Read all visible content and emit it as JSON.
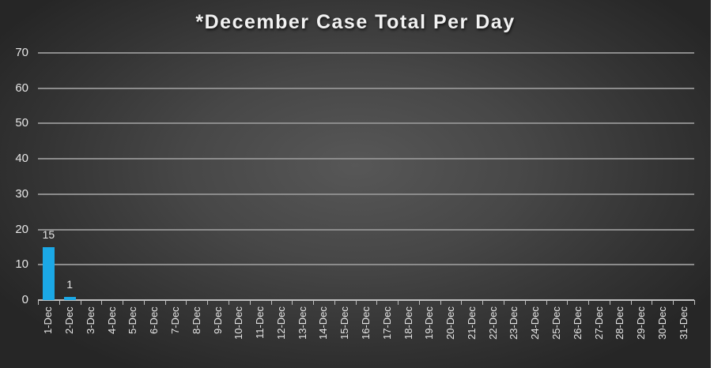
{
  "chart_data": {
    "type": "bar",
    "title": "*December Case Total Per Day",
    "xlabel": "",
    "ylabel": "",
    "ylim": [
      0,
      70
    ],
    "yticks": [
      0,
      10,
      20,
      30,
      40,
      50,
      60,
      70
    ],
    "grid": true,
    "legend": null,
    "bar_color": "#1ba8e6",
    "categories": [
      "1-Dec",
      "2-Dec",
      "3-Dec",
      "4-Dec",
      "5-Dec",
      "6-Dec",
      "7-Dec",
      "8-Dec",
      "9-Dec",
      "10-Dec",
      "11-Dec",
      "12-Dec",
      "13-Dec",
      "14-Dec",
      "15-Dec",
      "16-Dec",
      "17-Dec",
      "18-Dec",
      "19-Dec",
      "20-Dec",
      "21-Dec",
      "22-Dec",
      "23-Dec",
      "24-Dec",
      "25-Dec",
      "26-Dec",
      "27-Dec",
      "28-Dec",
      "29-Dec",
      "30-Dec",
      "31-Dec"
    ],
    "values": [
      15,
      1,
      null,
      null,
      null,
      null,
      null,
      null,
      null,
      null,
      null,
      null,
      null,
      null,
      null,
      null,
      null,
      null,
      null,
      null,
      null,
      null,
      null,
      null,
      null,
      null,
      null,
      null,
      null,
      null,
      null
    ],
    "data_labels": [
      "15",
      "1"
    ]
  }
}
